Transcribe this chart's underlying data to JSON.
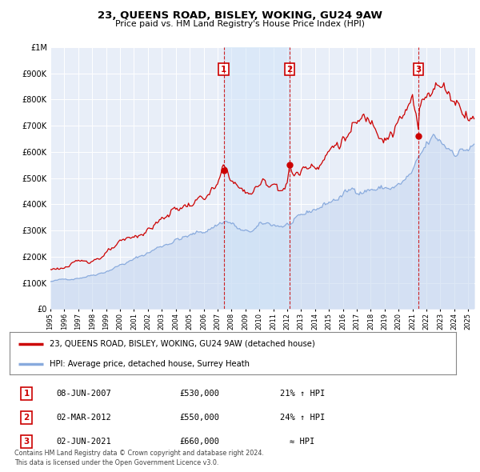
{
  "title": "23, QUEENS ROAD, BISLEY, WOKING, GU24 9AW",
  "subtitle": "Price paid vs. HM Land Registry's House Price Index (HPI)",
  "ytick_values": [
    0,
    100000,
    200000,
    300000,
    400000,
    500000,
    600000,
    700000,
    800000,
    900000,
    1000000
  ],
  "ylim": [
    0,
    1000000
  ],
  "xlim_start": 1995.0,
  "xlim_end": 2025.5,
  "background_color": "#ffffff",
  "plot_bg_color": "#e8eef8",
  "grid_color": "#ffffff",
  "sale_line_color": "#cc0000",
  "hpi_line_color": "#88aadd",
  "hpi_fill_color": "#c8d8f0",
  "transaction_line_color": "#cc0000",
  "transaction_shade_color": "#d0e4f8",
  "legend_sale_label": "23, QUEENS ROAD, BISLEY, WOKING, GU24 9AW (detached house)",
  "legend_hpi_label": "HPI: Average price, detached house, Surrey Heath",
  "transactions": [
    {
      "num": 1,
      "date": "08-JUN-2007",
      "price": 530000,
      "pct": "21%",
      "dir": "↑",
      "note": "HPI",
      "x": 2007.44
    },
    {
      "num": 2,
      "date": "02-MAR-2012",
      "price": 550000,
      "pct": "24%",
      "dir": "↑",
      "note": "HPI",
      "x": 2012.17
    },
    {
      "num": 3,
      "date": "02-JUN-2021",
      "price": 660000,
      "pct": "≈",
      "dir": "",
      "note": "HPI",
      "x": 2021.42
    }
  ],
  "footer_line1": "Contains HM Land Registry data © Crown copyright and database right 2024.",
  "footer_line2": "This data is licensed under the Open Government Licence v3.0."
}
